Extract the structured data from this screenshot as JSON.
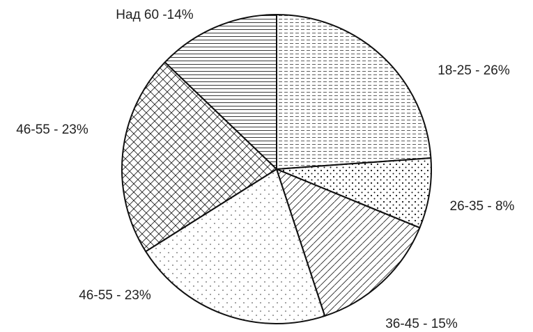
{
  "chart_data": {
    "type": "pie",
    "categories": [
      "18-25 - 26%",
      "26-35 - 8%",
      "36-45 - 15%",
      "46-55 - 23%",
      "46-55 - 23%",
      "Над 60 -14%"
    ],
    "values": [
      26,
      8,
      15,
      23,
      23,
      14
    ],
    "patterns": [
      "dashes",
      "dense-dots",
      "diagonal",
      "sparse-dots",
      "crosshatch",
      "hlines"
    ]
  }
}
